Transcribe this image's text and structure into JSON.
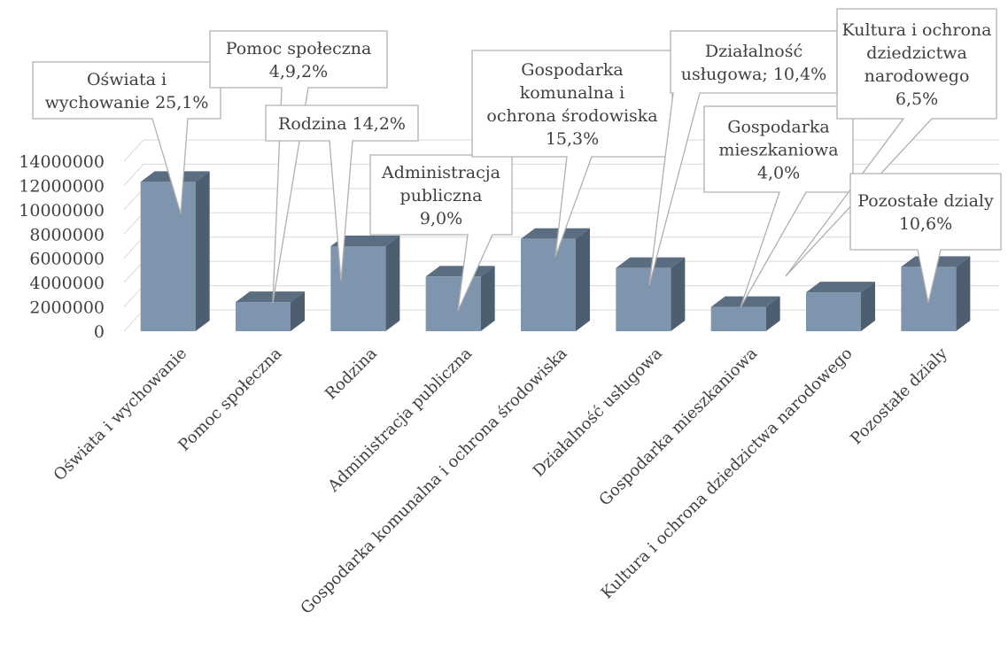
{
  "chart_data": {
    "type": "bar",
    "style": "3d-column",
    "categories": [
      "Oświata i wychowanie",
      "Pomoc społeczna",
      "Rodzina",
      "Administracja publiczna",
      "Gospodarka komunalna i ochrona środowiska",
      "Działalność usługowa",
      "Gospodarka mieszkaniowa",
      "Kultura i ochrona dziedzictwa narodowego",
      "Pozostałe dzialy"
    ],
    "values": [
      12300000,
      2400000,
      7000000,
      4500000,
      7600000,
      5200000,
      2000000,
      3200000,
      5300000
    ],
    "y_ticks": [
      "0",
      "2000000",
      "4000000",
      "6000000",
      "8000000",
      "10000000",
      "12000000",
      "14000000"
    ],
    "ylim": [
      0,
      14000000
    ],
    "grid": true,
    "colors": {
      "front": "#7f95ad",
      "top": "#5b6d80",
      "side": "#4d5e70"
    },
    "callouts": [
      {
        "lines": [
          "Oświata i",
          "wychowanie 25,1%"
        ]
      },
      {
        "lines": [
          "Pomoc społeczna",
          "4,9,2%"
        ]
      },
      {
        "lines": [
          "Rodzina 14,2%"
        ]
      },
      {
        "lines": [
          "Administracja",
          "publiczna",
          "9,0%"
        ]
      },
      {
        "lines": [
          "Gospodarka",
          "komunalna  i",
          "ochrona środowiska",
          "15,3%"
        ]
      },
      {
        "lines": [
          "Działalność",
          "usługowa; 10,4%"
        ]
      },
      {
        "lines": [
          "Gospodarka",
          "mieszkaniowa",
          "4,0%"
        ]
      },
      {
        "lines": [
          "Kultura i ochrona",
          "dziedzictwa",
          "narodowego",
          "6,5%"
        ]
      },
      {
        "lines": [
          "Pozostałe dzialy",
          "10,6%"
        ]
      }
    ]
  }
}
